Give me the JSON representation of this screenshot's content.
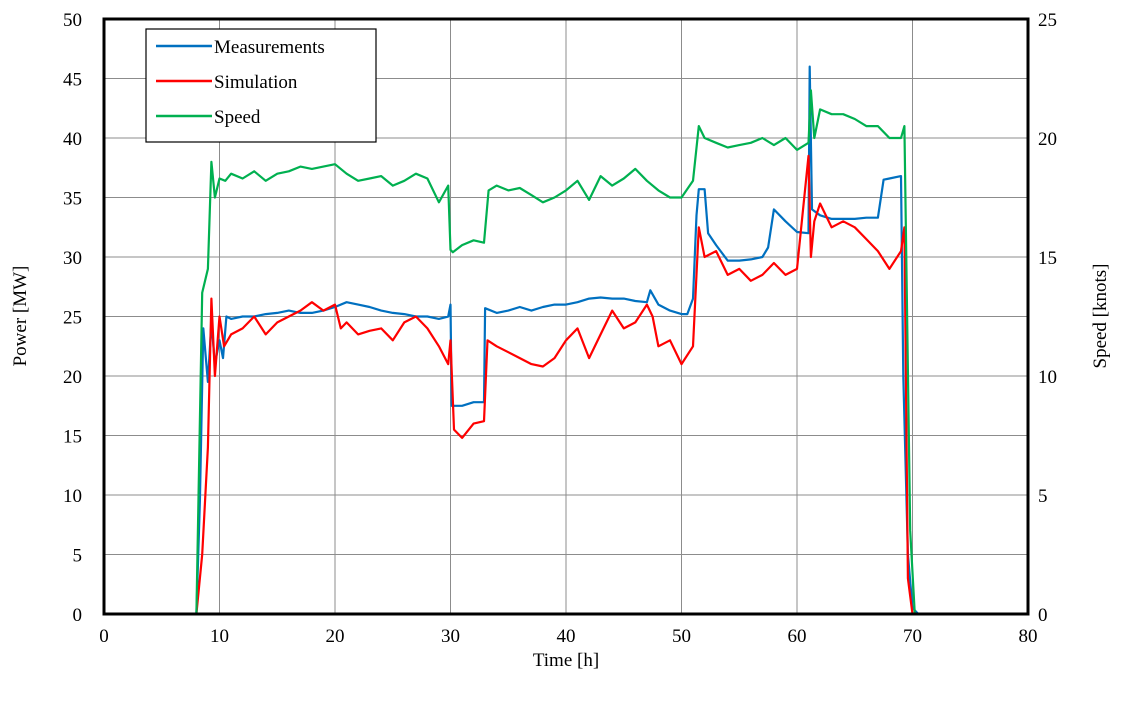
{
  "chart_data": {
    "type": "line",
    "title": "",
    "xlabel": "Time [h]",
    "ylabel": "Power [MW]",
    "y2label": "Speed [knots]",
    "xlim": [
      0,
      80
    ],
    "ylim": [
      0,
      50
    ],
    "y2lim": [
      0,
      25
    ],
    "xticks": [
      "0",
      "10",
      "20",
      "30",
      "40",
      "50",
      "60",
      "70",
      "80"
    ],
    "yticks": [
      "0",
      "5",
      "10",
      "15",
      "20",
      "25",
      "30",
      "35",
      "40",
      "45",
      "50"
    ],
    "y2ticks": [
      "0",
      "5",
      "10",
      "15",
      "20",
      "25"
    ],
    "grid": true,
    "legend": "top-left",
    "series": [
      {
        "name": "Measurements",
        "axis": "left",
        "color": "#0070c0",
        "x": [
          0,
          8,
          8.3,
          8.6,
          9,
          9.3,
          9.6,
          10,
          10.3,
          10.6,
          11,
          12,
          13,
          14,
          15,
          16,
          17,
          18,
          19,
          20,
          21,
          22,
          23,
          24,
          25,
          26,
          27,
          28,
          29,
          29.8,
          30,
          30.1,
          31,
          32,
          32.9,
          33,
          34,
          35,
          36,
          37,
          38,
          39,
          40,
          41,
          42,
          43,
          44,
          45,
          46,
          47,
          47.3,
          48,
          49,
          50,
          50.5,
          51,
          51.3,
          51.5,
          52,
          52.3,
          53,
          54,
          55,
          56,
          57,
          57.5,
          58,
          59,
          60,
          61,
          61.1,
          61.3,
          62,
          63,
          64,
          65,
          66,
          67,
          67.5,
          68,
          69,
          69.2,
          69.6,
          70,
          70.5,
          80
        ],
        "y": [
          0,
          0,
          9.5,
          24,
          19.5,
          24.5,
          21,
          23,
          21.5,
          25,
          24.8,
          25,
          25,
          25.2,
          25.3,
          25.5,
          25.3,
          25.3,
          25.5,
          25.8,
          26.2,
          26,
          25.8,
          25.5,
          25.3,
          25.2,
          25,
          25,
          24.8,
          25,
          26,
          17.5,
          17.5,
          17.8,
          17.8,
          25.7,
          25.3,
          25.5,
          25.8,
          25.5,
          25.8,
          26,
          26,
          26.2,
          26.5,
          26.6,
          26.5,
          26.5,
          26.3,
          26.2,
          27.2,
          26,
          25.5,
          25.2,
          25.2,
          26.5,
          33.5,
          35.7,
          35.7,
          32,
          31,
          29.7,
          29.7,
          29.8,
          30,
          30.8,
          34,
          33,
          32.1,
          32,
          46,
          34,
          33.5,
          33.2,
          33.2,
          33.2,
          33.3,
          33.3,
          36.5,
          36.6,
          36.8,
          20,
          5,
          0.5,
          0,
          0
        ]
      },
      {
        "name": "Simulation",
        "axis": "left",
        "color": "#ff0000",
        "x": [
          0,
          8,
          8.5,
          9,
          9.3,
          9.6,
          10,
          10.4,
          11,
          12,
          13,
          14,
          15,
          16,
          17,
          18,
          19,
          20,
          20.5,
          21,
          22,
          23,
          24,
          25,
          26,
          27,
          28,
          29,
          29.8,
          30,
          30.3,
          31,
          32,
          32.9,
          33.2,
          34,
          35,
          36,
          37,
          38,
          39,
          40,
          41,
          42,
          43,
          44,
          45,
          46,
          47,
          47.5,
          48,
          49,
          50,
          51,
          51.5,
          52,
          53,
          54,
          55,
          56,
          57,
          58,
          59,
          60,
          61,
          61.2,
          61.5,
          62,
          63,
          64,
          65,
          66,
          67,
          68,
          69,
          69.3,
          69.6,
          70,
          80
        ],
        "y": [
          0,
          0,
          5,
          14,
          26.5,
          20,
          25,
          22.5,
          23.5,
          24,
          25,
          23.5,
          24.5,
          25,
          25.5,
          26.2,
          25.5,
          26,
          24,
          24.5,
          23.5,
          23.8,
          24,
          23,
          24.5,
          25,
          24,
          22.5,
          21,
          23,
          15.5,
          14.8,
          16,
          16.2,
          23,
          22.5,
          22,
          21.5,
          21,
          20.8,
          21.5,
          23,
          24,
          21.5,
          23.5,
          25.5,
          24,
          24.5,
          26,
          25,
          22.5,
          23,
          21,
          22.5,
          32.5,
          30,
          30.5,
          28.5,
          29,
          28,
          28.5,
          29.5,
          28.5,
          29,
          38.5,
          30,
          33,
          34.5,
          32.5,
          33,
          32.5,
          31.5,
          30.5,
          29,
          30.5,
          32.5,
          3,
          0,
          0
        ]
      },
      {
        "name": "Speed",
        "axis": "right",
        "color": "#00b050",
        "x": [
          0,
          8,
          8.5,
          9,
          9.3,
          9.6,
          10,
          10.5,
          11,
          12,
          13,
          14,
          15,
          16,
          17,
          18,
          19,
          20,
          21,
          22,
          23,
          24,
          25,
          26,
          27,
          28,
          29,
          29.8,
          30,
          30.2,
          31,
          32,
          32.9,
          33.3,
          34,
          35,
          36,
          37,
          38,
          39,
          40,
          41,
          42,
          43,
          44,
          45,
          46,
          47,
          48,
          49,
          50,
          51,
          51.5,
          52,
          53,
          54,
          55,
          56,
          57,
          58,
          59,
          60,
          61,
          61.2,
          61.5,
          62,
          63,
          64,
          65,
          66,
          67,
          68,
          69,
          69.3,
          69.8,
          70.2,
          80
        ],
        "y": [
          0,
          0,
          13.5,
          14.5,
          19,
          17.5,
          18.3,
          18.2,
          18.5,
          18.3,
          18.6,
          18.2,
          18.5,
          18.6,
          18.8,
          18.7,
          18.8,
          18.9,
          18.5,
          18.2,
          18.3,
          18.4,
          18,
          18.2,
          18.5,
          18.3,
          17.3,
          18,
          15.3,
          15.2,
          15.5,
          15.7,
          15.6,
          17.8,
          18,
          17.8,
          17.9,
          17.6,
          17.3,
          17.5,
          17.8,
          18.2,
          17.4,
          18.4,
          18,
          18.3,
          18.7,
          18.2,
          17.8,
          17.5,
          17.5,
          18.2,
          20.5,
          20,
          19.8,
          19.6,
          19.7,
          19.8,
          20,
          19.7,
          20,
          19.5,
          19.8,
          22,
          20,
          21.2,
          21,
          21,
          20.8,
          20.5,
          20.5,
          20,
          20,
          20.5,
          3.5,
          0,
          0
        ]
      }
    ]
  }
}
